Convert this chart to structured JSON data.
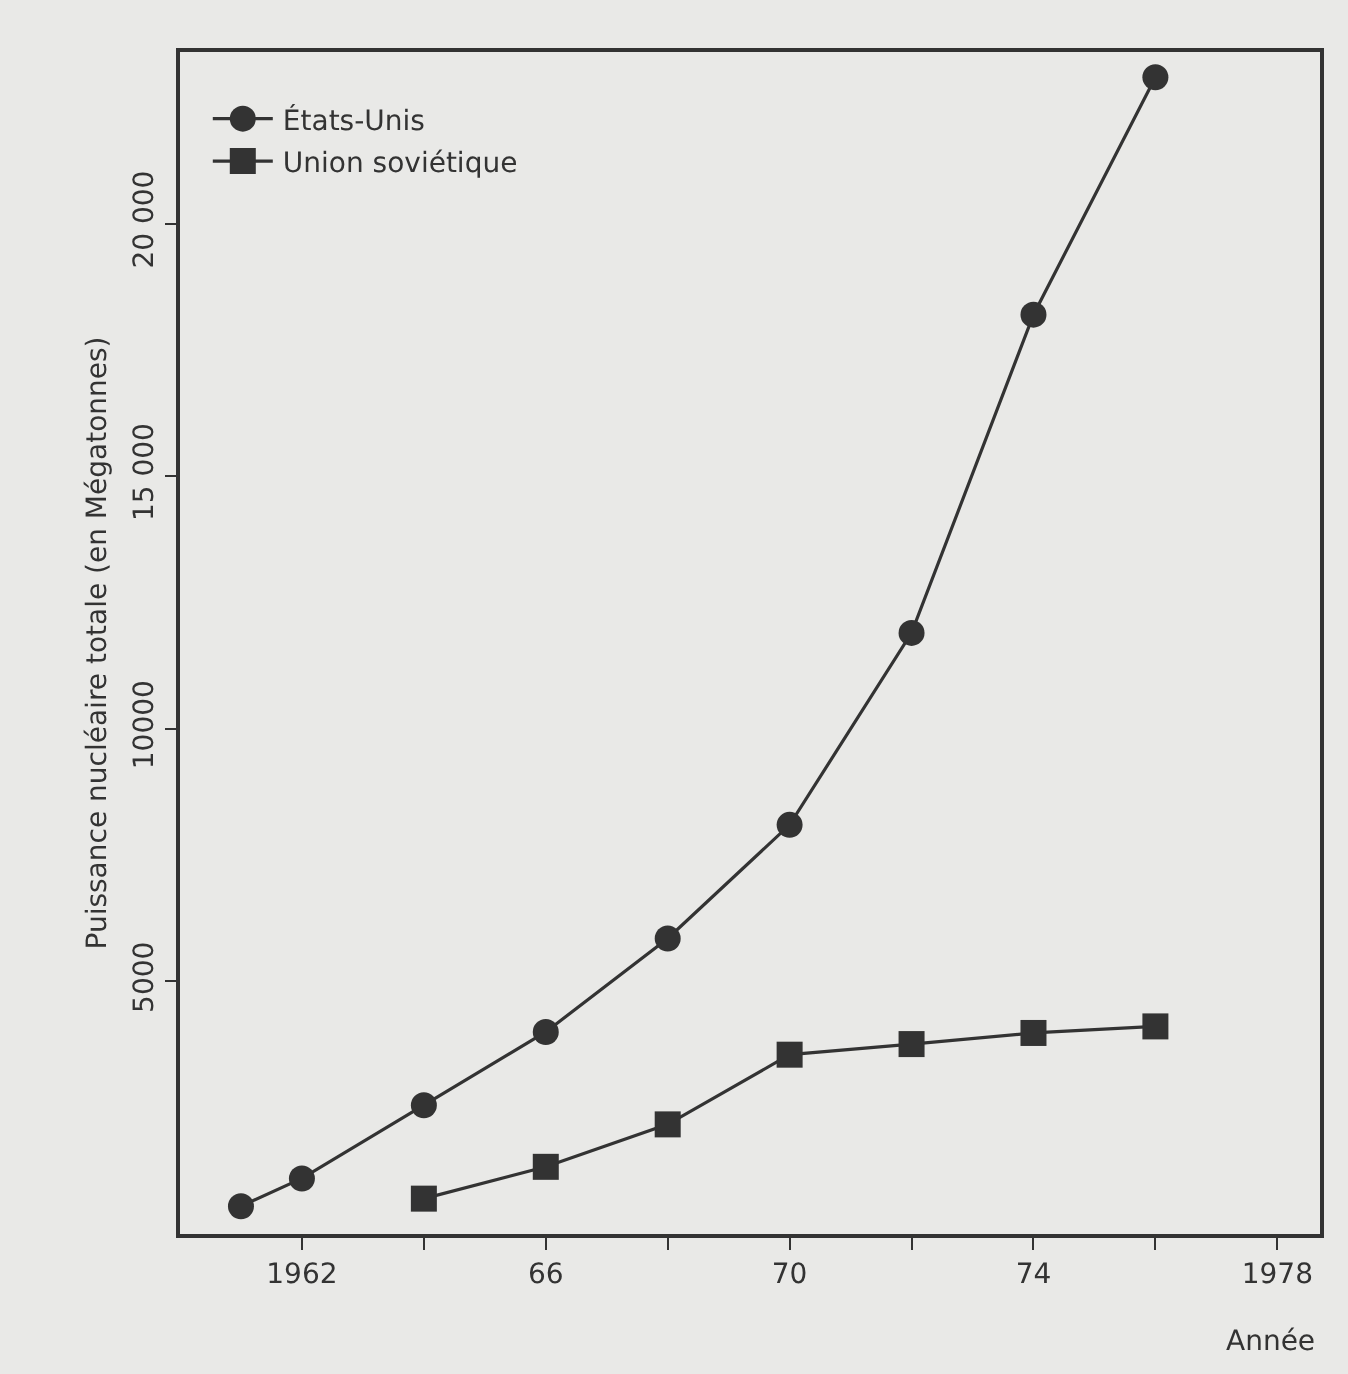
{
  "chart_data": {
    "type": "line",
    "xlabel": "Année",
    "ylabel": "Puissance nucléaire totale (en Mégatonnes)",
    "series": [
      {
        "name": "États-Unis",
        "color": "#333333",
        "marker": "circle",
        "x": [
          1961,
          1962,
          1964,
          1966,
          1968,
          1970,
          1972,
          1974,
          1976
        ],
        "values": [
          550,
          1100,
          2550,
          4000,
          5850,
          8100,
          11900,
          18200,
          22900
        ]
      },
      {
        "name": "Union soviétique",
        "color": "#333333",
        "marker": "square",
        "x": [
          1964,
          1966,
          1968,
          1970,
          1972,
          1974,
          1976
        ],
        "values": [
          700,
          1330,
          2170,
          3550,
          3760,
          3980,
          4110
        ]
      }
    ],
    "xlim": [
      1960,
      1978.7
    ],
    "ylim": [
      0,
      23400
    ],
    "xticks": [
      1962,
      {
        "value": 1964,
        "label": null
      },
      {
        "value": 1966,
        "label": "66"
      },
      {
        "value": 1968,
        "label": null
      },
      {
        "value": 1970,
        "label": "70"
      },
      {
        "value": 1972,
        "label": null
      },
      {
        "value": 1974,
        "label": "74"
      },
      {
        "value": 1976,
        "label": null
      },
      1978
    ],
    "yticks": [
      5000,
      10000,
      {
        "value": 15000,
        "label": "15 000"
      },
      {
        "value": 20000,
        "label": "20 000"
      }
    ],
    "grid": false,
    "legend": "top left",
    "line_style": "solid"
  }
}
